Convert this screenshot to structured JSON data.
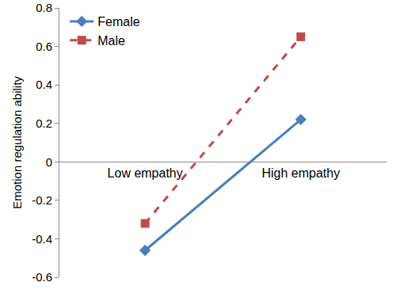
{
  "chart_data": {
    "type": "line",
    "y_label": "Emotion regulation ability",
    "categories": [
      "Low empathy",
      "High empathy"
    ],
    "series": [
      {
        "name": "Female",
        "color": "#4a7ebb",
        "marker": "diamond",
        "line_style": "solid",
        "values": [
          -0.46,
          0.22
        ]
      },
      {
        "name": "Male",
        "color": "#be4b48",
        "marker": "square",
        "line_style": "dash",
        "values": [
          -0.32,
          0.65
        ]
      }
    ],
    "ylim": [
      -0.6,
      0.8
    ],
    "yticks": [
      -0.6,
      -0.4,
      -0.2,
      0,
      0.2,
      0.4,
      0.6,
      0.8
    ],
    "grid": false,
    "legend": "top-left"
  }
}
